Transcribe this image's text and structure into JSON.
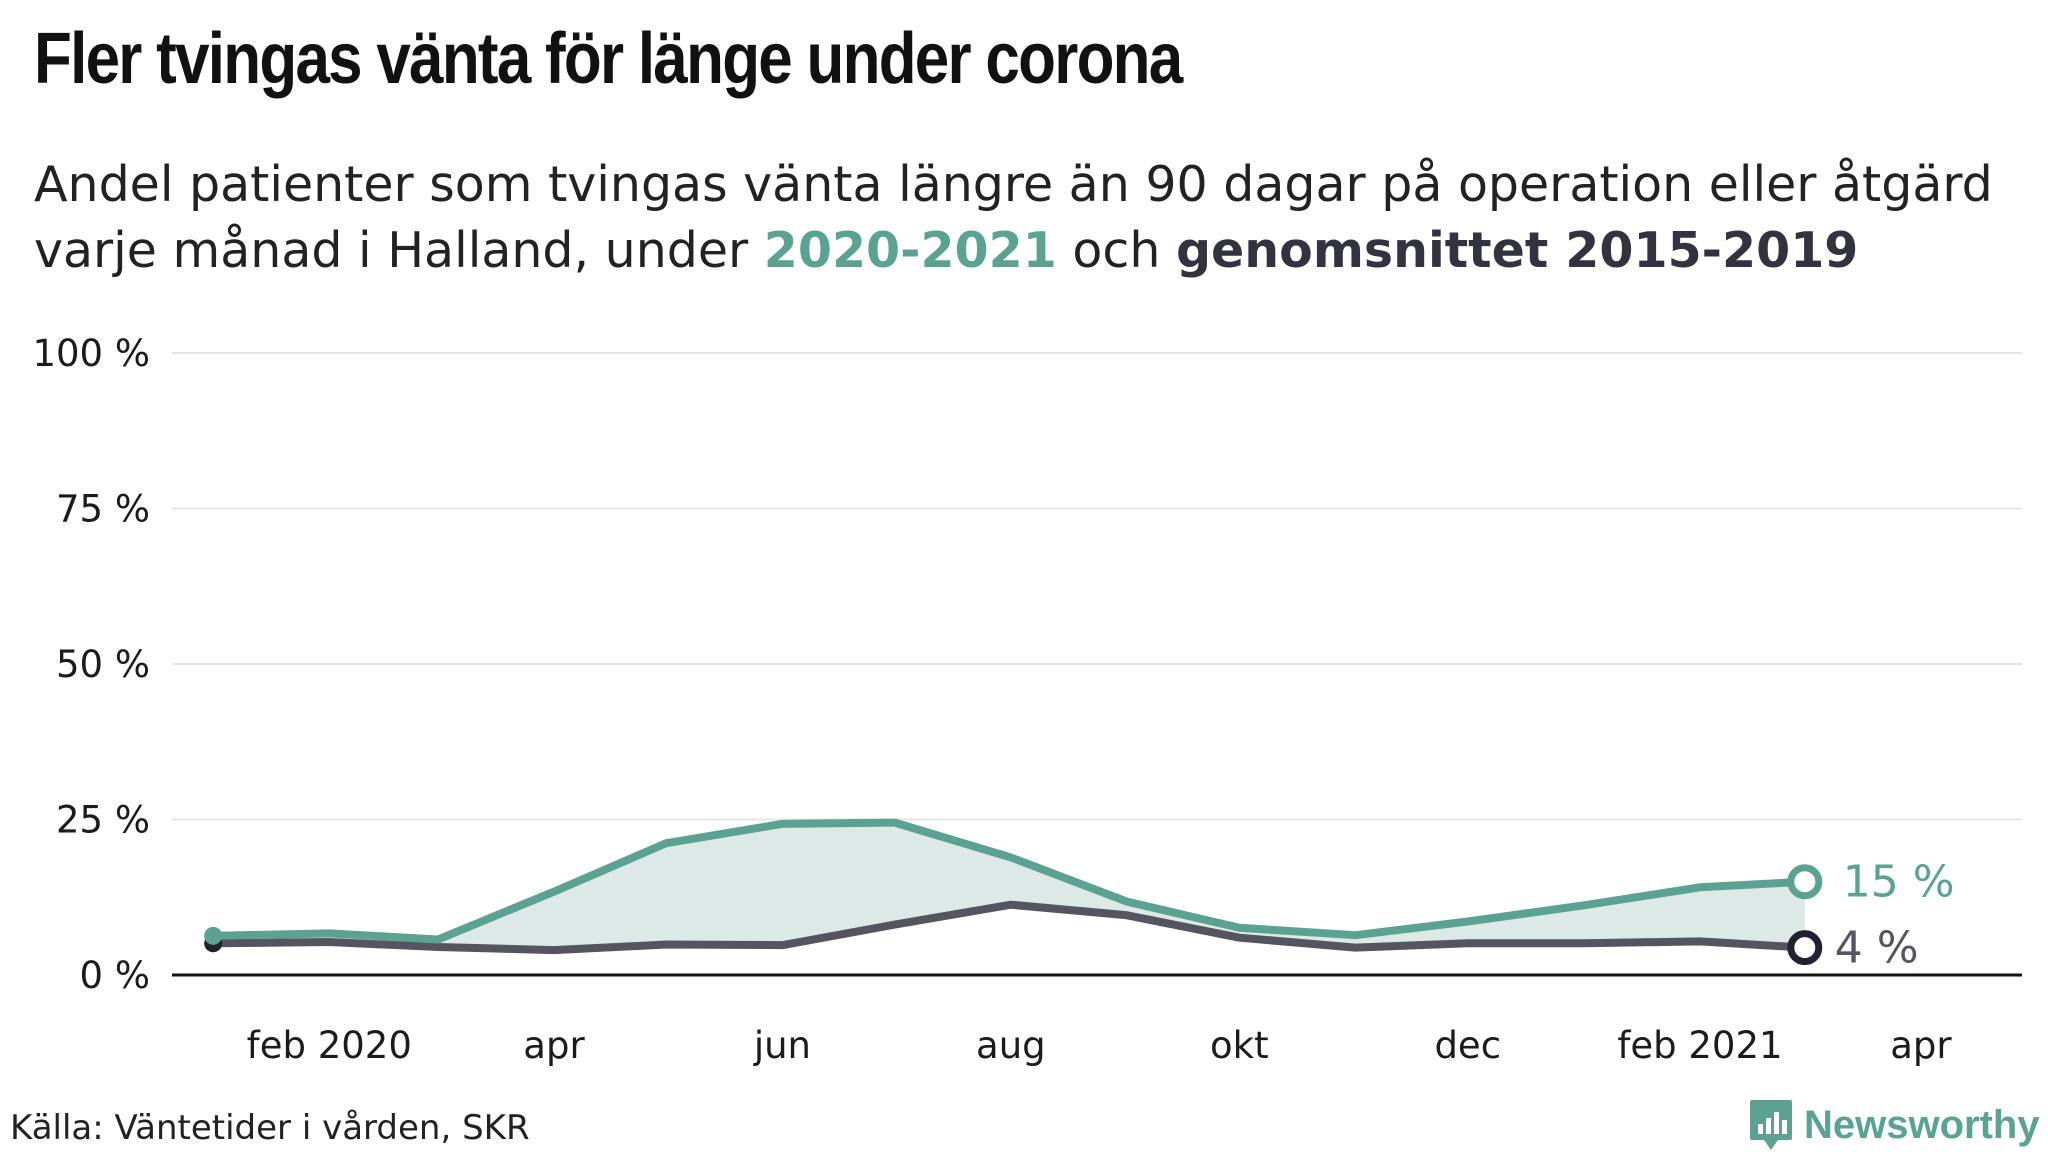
{
  "title": "Fler tvingas vänta för länge under corona",
  "subtitle": {
    "part1": "Andel patienter som tvingas vänta längre än 90 dagar på operation eller åtgärd varje månad i Halland, under ",
    "highlight_a": "2020-2021",
    "part2": " och ",
    "highlight_b": "genomsnittet 2015-2019"
  },
  "source": "Källa: Väntetider i vården, SKR",
  "brand": {
    "name": "Newsworthy",
    "icon": "newsworthy-logo-icon"
  },
  "colors": {
    "current": "#5ba293",
    "average": "#555461",
    "fill": "#dae8e5",
    "axis": "#111111",
    "grid": "#e6e6e6"
  },
  "chart_data": {
    "type": "line",
    "x_unit": "month",
    "x": [
      "2020-01",
      "2020-02",
      "2020-03",
      "2020-04",
      "2020-05",
      "2020-06",
      "2020-07",
      "2020-08",
      "2020-09",
      "2020-10",
      "2020-11",
      "2020-12",
      "2021-01",
      "2021-02",
      "2021-03"
    ],
    "series": [
      {
        "name": "2020-2021",
        "values": [
          6.3,
          6.7,
          5.7,
          13.4,
          21.2,
          24.3,
          24.5,
          18.9,
          11.8,
          7.6,
          6.4,
          8.6,
          11.2,
          14.1,
          15.0
        ],
        "end_label": "15 %"
      },
      {
        "name": "genomsnittet 2015-2019",
        "values": [
          5.1,
          5.3,
          4.5,
          4.0,
          4.9,
          4.8,
          8.1,
          11.3,
          9.6,
          6.0,
          4.4,
          5.1,
          5.1,
          5.4,
          4.4
        ],
        "end_label": "4 %"
      }
    ],
    "ylim": [
      0,
      100
    ],
    "y_ticks": [
      0,
      25,
      50,
      75,
      100
    ],
    "y_tick_labels": [
      "0 %",
      "25 %",
      "50 %",
      "75 %",
      "100 %"
    ],
    "x_ticks": [
      {
        "date": "2020-02",
        "label": "feb 2020"
      },
      {
        "date": "2020-04",
        "label": "apr"
      },
      {
        "date": "2020-06",
        "label": "jun"
      },
      {
        "date": "2020-08",
        "label": "aug"
      },
      {
        "date": "2020-10",
        "label": "okt"
      },
      {
        "date": "2020-12",
        "label": "dec"
      },
      {
        "date": "2021-02",
        "label": "feb 2021"
      },
      {
        "date": "2021-04",
        "label": "apr"
      }
    ],
    "x_range": [
      "2019-12-21",
      "2021-04-28"
    ],
    "grid": true
  }
}
